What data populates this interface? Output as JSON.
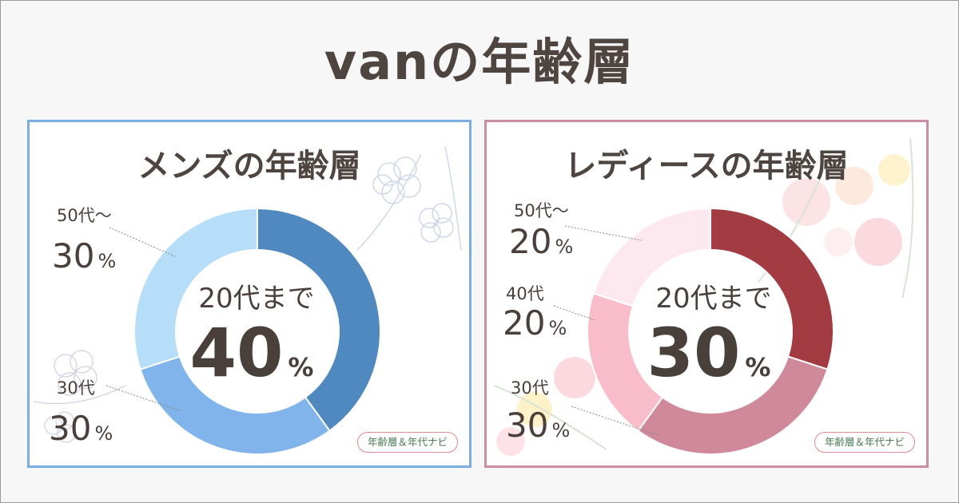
{
  "title": "vanの年齢層",
  "brand_badge": "年齢層＆年代ナビ",
  "colors": {
    "men_border": "#7aaee0",
    "women_border": "#c98ea0",
    "text": "#4a403b"
  },
  "chart_data": [
    {
      "type": "pie",
      "donut": true,
      "title": "メンズの年齢層",
      "center_label": "20代まで",
      "center_value": "40",
      "percent_sign": "%",
      "slices": [
        {
          "label": "20代まで",
          "value": 40,
          "color": "#5089c0"
        },
        {
          "label": "30代",
          "value": 30,
          "color": "#80b4ea"
        },
        {
          "label": "50代～",
          "value": 30,
          "color": "#b6def9"
        }
      ],
      "callouts": [
        {
          "label": "50代～",
          "value": "30"
        },
        {
          "label": "30代",
          "value": "30"
        }
      ]
    },
    {
      "type": "pie",
      "donut": true,
      "title": "レディースの年齢層",
      "center_label": "20代まで",
      "center_value": "30",
      "percent_sign": "%",
      "slices": [
        {
          "label": "20代まで",
          "value": 30,
          "color": "#a23c42"
        },
        {
          "label": "30代",
          "value": 30,
          "color": "#d0899a"
        },
        {
          "label": "40代",
          "value": 20,
          "color": "#f9bccb"
        },
        {
          "label": "50代～",
          "value": 20,
          "color": "#fde8f0"
        }
      ],
      "callouts": [
        {
          "label": "50代～",
          "value": "20"
        },
        {
          "label": "40代",
          "value": "20"
        },
        {
          "label": "30代",
          "value": "30"
        }
      ]
    }
  ]
}
